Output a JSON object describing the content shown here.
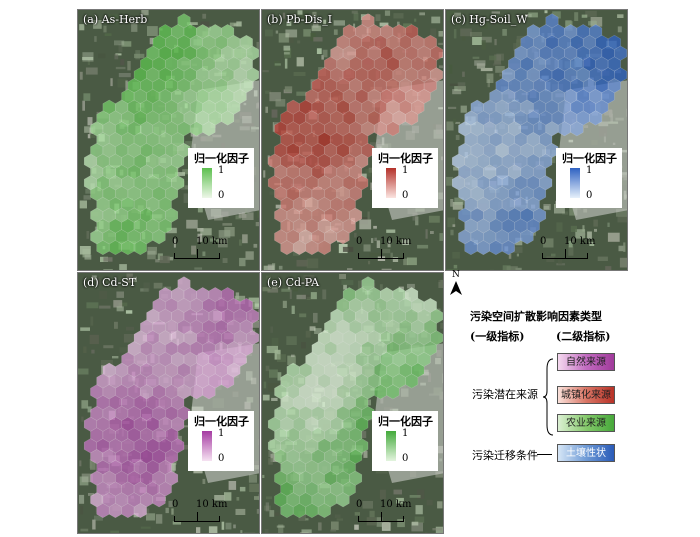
{
  "panels": [
    {
      "label": "(a)  As-Herb",
      "ramp": [
        "#edf7e8",
        "#5cbf4e"
      ],
      "ramp_name": "green"
    },
    {
      "label": "(b)  Pb-Dis_I",
      "ramp": [
        "#fbe4e0",
        "#b4312a"
      ],
      "ramp_name": "red"
    },
    {
      "label": "(c)  Hg-Soil_W",
      "ramp": [
        "#e6f0fb",
        "#2f62c2"
      ],
      "ramp_name": "blue"
    },
    {
      "label": "(d)  Cd-ST",
      "ramp": [
        "#f6e2f2",
        "#a53ba2"
      ],
      "ramp_name": "magenta"
    },
    {
      "label": "(e)  Cd-PA",
      "ramp": [
        "#e3f4de",
        "#43aa3b"
      ],
      "ramp_name": "green"
    }
  ],
  "legend": {
    "title": "归一化因子",
    "max": "1",
    "min": "0"
  },
  "scalebar": {
    "zero": "0",
    "ten": "10 km"
  },
  "north": {
    "letter": "N"
  },
  "schema": {
    "title": "污染空间扩散影响因素类型",
    "level1": "(一级指标)",
    "level2": "(二级指标)",
    "source_label": "污染潜在来源",
    "migration_label": "污染迁移条件",
    "nat": "自然来源",
    "urb": "城镇化来源",
    "agr": "农业来源",
    "soil": "土壤性状"
  },
  "colors": {
    "satellite_dark": "#4a5a44",
    "satellite_light": "#c9ccc7"
  }
}
